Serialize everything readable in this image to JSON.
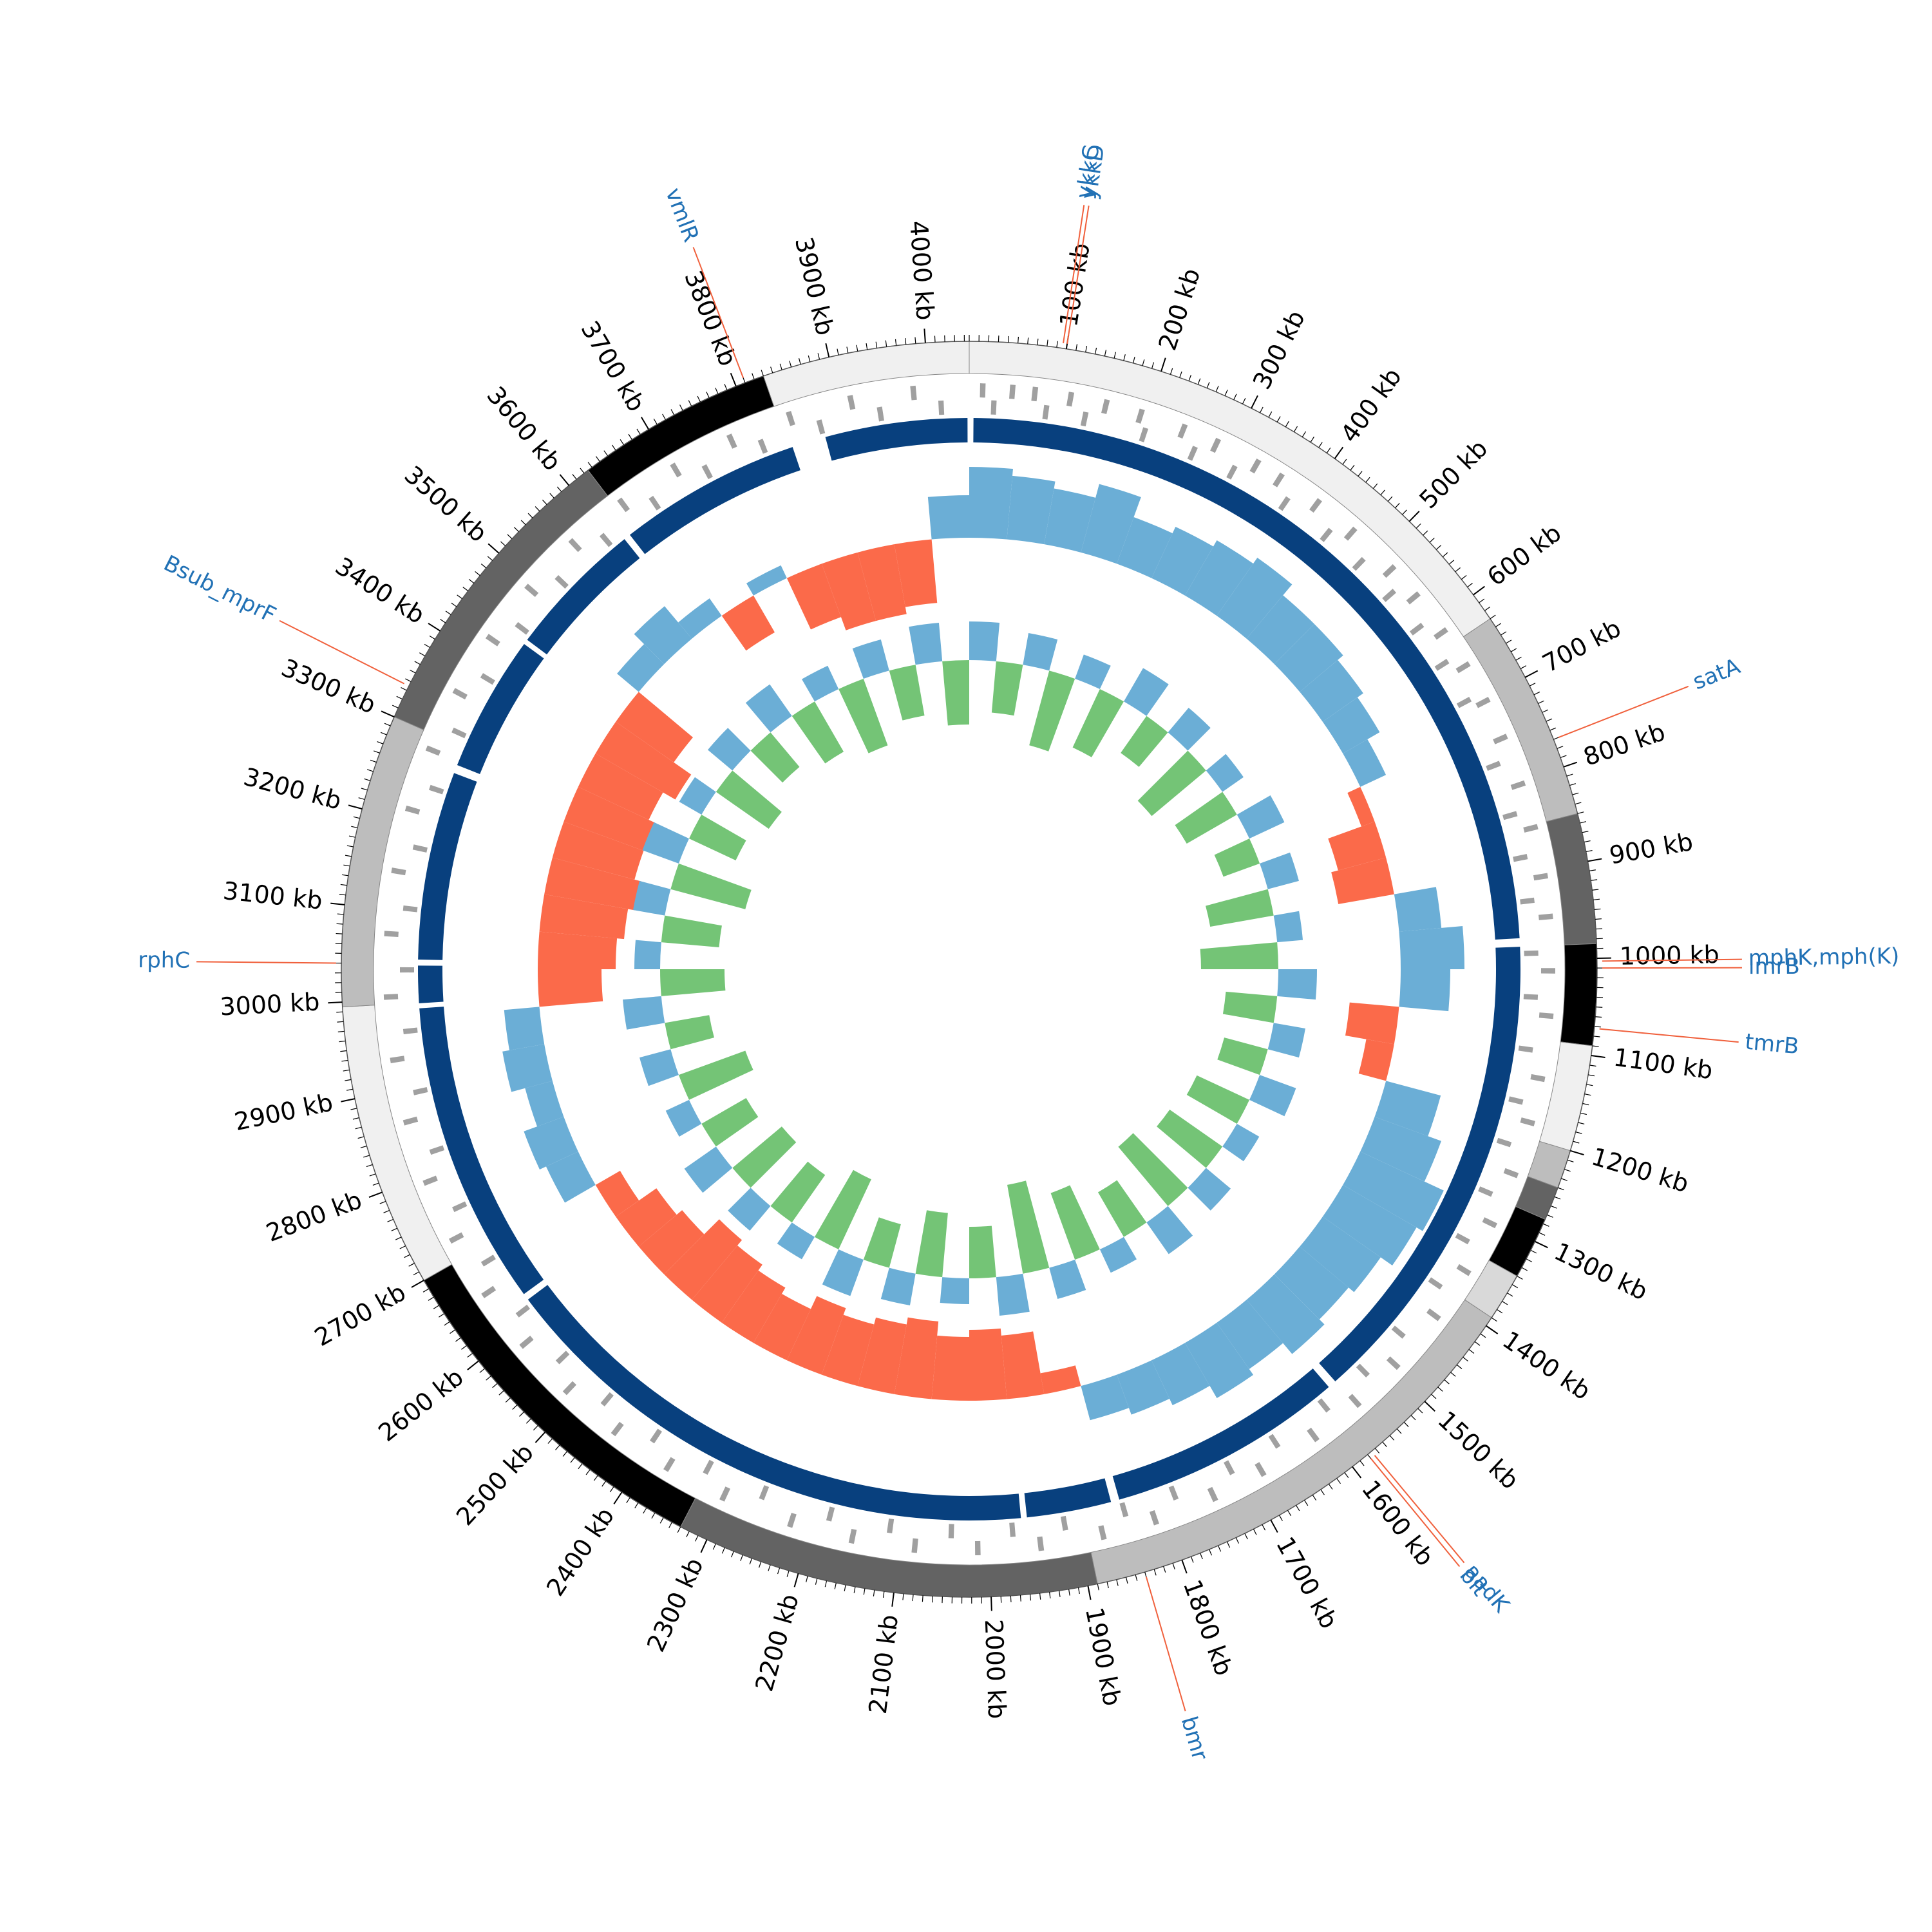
{
  "chart_data": {
    "type": "circular-genome",
    "xlim": [
      0,
      4045
    ],
    "xticks": [
      {
        "value": 100,
        "label": "100 kb"
      },
      {
        "value": 200,
        "label": "200 kb"
      },
      {
        "value": 300,
        "label": "300 kb"
      },
      {
        "value": 400,
        "label": "400 kb"
      },
      {
        "value": 500,
        "label": "500 kb"
      },
      {
        "value": 600,
        "label": "600 kb"
      },
      {
        "value": 700,
        "label": "700 kb"
      },
      {
        "value": 800,
        "label": "800 kb"
      },
      {
        "value": 900,
        "label": "900 kb"
      },
      {
        "value": 1000,
        "label": "1000 kb"
      },
      {
        "value": 1100,
        "label": "1100 kb"
      },
      {
        "value": 1200,
        "label": "1200 kb"
      },
      {
        "value": 1300,
        "label": "1300 kb"
      },
      {
        "value": 1400,
        "label": "1400 kb"
      },
      {
        "value": 1500,
        "label": "1500 kb"
      },
      {
        "value": 1600,
        "label": "1600 kb"
      },
      {
        "value": 1700,
        "label": "1700 kb"
      },
      {
        "value": 1800,
        "label": "1800 kb"
      },
      {
        "value": 1900,
        "label": "1900 kb"
      },
      {
        "value": 2000,
        "label": "2000 kb"
      },
      {
        "value": 2100,
        "label": "2100 kb"
      },
      {
        "value": 2200,
        "label": "2200 kb"
      },
      {
        "value": 2300,
        "label": "2300 kb"
      },
      {
        "value": 2400,
        "label": "2400 kb"
      },
      {
        "value": 2500,
        "label": "2500 kb"
      },
      {
        "value": 2600,
        "label": "2600 kb"
      },
      {
        "value": 2700,
        "label": "2700 kb"
      },
      {
        "value": 2800,
        "label": "2800 kb"
      },
      {
        "value": 2900,
        "label": "2900 kb"
      },
      {
        "value": 3000,
        "label": "3000 kb"
      },
      {
        "value": 3100,
        "label": "3100 kb"
      },
      {
        "value": 3200,
        "label": "3200 kb"
      },
      {
        "value": 3300,
        "label": "3300 kb"
      },
      {
        "value": 3400,
        "label": "3400 kb"
      },
      {
        "value": 3500,
        "label": "3500 kb"
      },
      {
        "value": 3600,
        "label": "3600 kb"
      },
      {
        "value": 3700,
        "label": "3700 kb"
      },
      {
        "value": 3800,
        "label": "3800 kb"
      },
      {
        "value": 3900,
        "label": "3900 kb"
      },
      {
        "value": 4000,
        "label": "4000 kb"
      }
    ],
    "minor_tick_step": 10,
    "contigs": [
      {
        "start": 3830,
        "end": 4045,
        "color": "#f0f0f0"
      },
      {
        "start": 0,
        "end": 630,
        "color": "#f0f0f0"
      },
      {
        "start": 630,
        "end": 850,
        "color": "#bdbdbd"
      },
      {
        "start": 850,
        "end": 985,
        "color": "#636363"
      },
      {
        "start": 985,
        "end": 1090,
        "color": "#000000"
      },
      {
        "start": 1090,
        "end": 1200,
        "color": "#f0f0f0"
      },
      {
        "start": 1200,
        "end": 1240,
        "color": "#bdbdbd"
      },
      {
        "start": 1240,
        "end": 1275,
        "color": "#636363"
      },
      {
        "start": 1275,
        "end": 1340,
        "color": "#000000"
      },
      {
        "start": 1340,
        "end": 1390,
        "color": "#d9d9d9"
      },
      {
        "start": 1390,
        "end": 1890,
        "color": "#bdbdbd"
      },
      {
        "start": 1890,
        "end": 2330,
        "color": "#636363"
      },
      {
        "start": 2330,
        "end": 2700,
        "color": "#000000"
      },
      {
        "start": 2700,
        "end": 2995,
        "color": "#f0f0f0"
      },
      {
        "start": 2995,
        "end": 3300,
        "color": "#bdbdbd"
      },
      {
        "start": 3300,
        "end": 3625,
        "color": "#636363"
      },
      {
        "start": 3625,
        "end": 3830,
        "color": "#000000"
      }
    ],
    "features_forward": [
      12,
      45,
      70,
      110,
      150,
      190,
      240,
      280,
      330,
      360,
      410,
      460,
      520,
      560,
      610,
      655,
      700,
      745,
      800,
      850,
      905,
      950,
      1010,
      1060,
      1130,
      1180,
      1240,
      1300,
      1360,
      1420,
      1490,
      1550,
      1610,
      1680,
      1740,
      1810,
      1870,
      1940,
      2010,
      2080,
      2150,
      2220,
      2300,
      2370,
      2440,
      2510,
      2580,
      2650,
      2720,
      2790,
      2860,
      2930,
      3000,
      3070,
      3140,
      3210,
      3280,
      3350,
      3420,
      3490,
      3560,
      3630,
      3700,
      3770,
      3840,
      3910,
      3980
    ],
    "features_reverse": [
      25,
      85,
      130,
      200,
      260,
      310,
      380,
      440,
      490,
      540,
      590,
      640,
      690,
      770,
      830,
      880,
      930,
      990,
      1040,
      1100,
      1160,
      1210,
      1270,
      1330,
      1390,
      1460,
      1520,
      1580,
      1650,
      1710,
      1780,
      1840,
      1910,
      1970,
      2040,
      2110,
      2180,
      2260,
      2330,
      2400,
      2470,
      2540,
      2610,
      2680,
      2750,
      2820,
      2890,
      2960,
      3030,
      3100,
      3170,
      3240,
      3310,
      3380,
      3450,
      3520,
      3590,
      3660,
      3730,
      3800,
      3870,
      3940,
      4010
    ],
    "features_color": "#a0a0a0",
    "blocks": [
      [
        5,
        975
      ],
      [
        985,
        1555
      ],
      [
        1565,
        1845
      ],
      [
        1855,
        1955
      ],
      [
        1962,
        2620
      ],
      [
        2628,
        2988
      ],
      [
        2994,
        3038
      ],
      [
        3045,
        3268
      ],
      [
        3278,
        3440
      ],
      [
        3446,
        3610
      ],
      [
        3618,
        3835
      ],
      [
        3875,
        4043
      ]
    ],
    "blocks_color": "#08407e",
    "gc_content": [
      0.5,
      0.45,
      0.4,
      0.5,
      0.35,
      0.4,
      0.45,
      0.5,
      0.4,
      0.4,
      0.35,
      0.3,
      0.2,
      -0.1,
      -0.35,
      -0.4,
      0.3,
      0.45,
      0.35,
      -0.35,
      -0.2,
      0.4,
      0.5,
      0.65,
      0.6,
      0.5,
      0.45,
      0.5,
      0.4,
      0.45,
      0.35,
      0.3,
      0.25,
      -0.15,
      -0.45,
      -0.5,
      -0.45,
      -0.55,
      -0.5,
      -0.45,
      -0.5,
      -0.4,
      -0.45,
      -0.5,
      -0.55,
      -0.4,
      -0.35,
      -0.2,
      0.25,
      0.3,
      0.2,
      0.3,
      0.25,
      -0.45,
      -0.55,
      -0.6,
      -0.65,
      -0.6,
      -0.6,
      -0.55,
      -0.65,
      -0.5,
      0.2,
      0.3,
      0.15,
      -0.3,
      0.1,
      -0.4,
      -0.5,
      -0.5,
      -0.45,
      0.3
    ],
    "gc_content_colors": {
      "positive": "#6baed6",
      "negative": "#fb6a4a"
    },
    "gc_skew": [
      0.3,
      -0.4,
      0.25,
      -0.6,
      0.2,
      -0.5,
      0.3,
      -0.35,
      0.25,
      -0.55,
      0.2,
      -0.45,
      0.3,
      -0.3,
      0.25,
      -0.5,
      0.2,
      -0.6,
      0.3,
      -0.4,
      0.25,
      -0.35,
      0.3,
      -0.45,
      0.2,
      -0.5,
      0.25,
      -0.6,
      0.3,
      -0.4,
      0.2,
      -0.55,
      0.25,
      -0.7,
      0.3,
      -0.4,
      0.2,
      -0.5,
      0.25,
      -0.35,
      0.3,
      -0.6,
      0.2,
      -0.45,
      0.25,
      -0.5,
      0.3,
      -0.4,
      0.2,
      -0.55,
      0.25,
      -0.35,
      0.3,
      -0.5,
      0.2,
      -0.45,
      0.25,
      -0.6,
      0.3,
      -0.4,
      0.2,
      -0.5,
      0.25,
      -0.35,
      0.3,
      -0.45,
      0.2,
      -0.55,
      0.25,
      -0.4,
      0.3,
      -0.5
    ],
    "gc_skew_colors": {
      "positive": "#6baed6",
      "negative": "#74c476"
    },
    "genes": [
      {
        "name": "ykkC",
        "position": 96
      },
      {
        "name": "ykkD",
        "position": 100
      },
      {
        "name": "satA",
        "position": 770
      },
      {
        "name": "mphK,mph(K)",
        "position": 1003
      },
      {
        "name": "lmrB",
        "position": 1010
      },
      {
        "name": "tmrB",
        "position": 1072
      },
      {
        "name": "aadK",
        "position": 1575
      },
      {
        "name": "blt",
        "position": 1580
      },
      {
        "name": "bmr",
        "position": 1840
      },
      {
        "name": "rphC",
        "position": 3040
      },
      {
        "name": "Bsub_mprF",
        "position": 3335
      },
      {
        "name": "vmlR",
        "position": 3810
      }
    ],
    "gene_line_color": "#f0603c"
  }
}
